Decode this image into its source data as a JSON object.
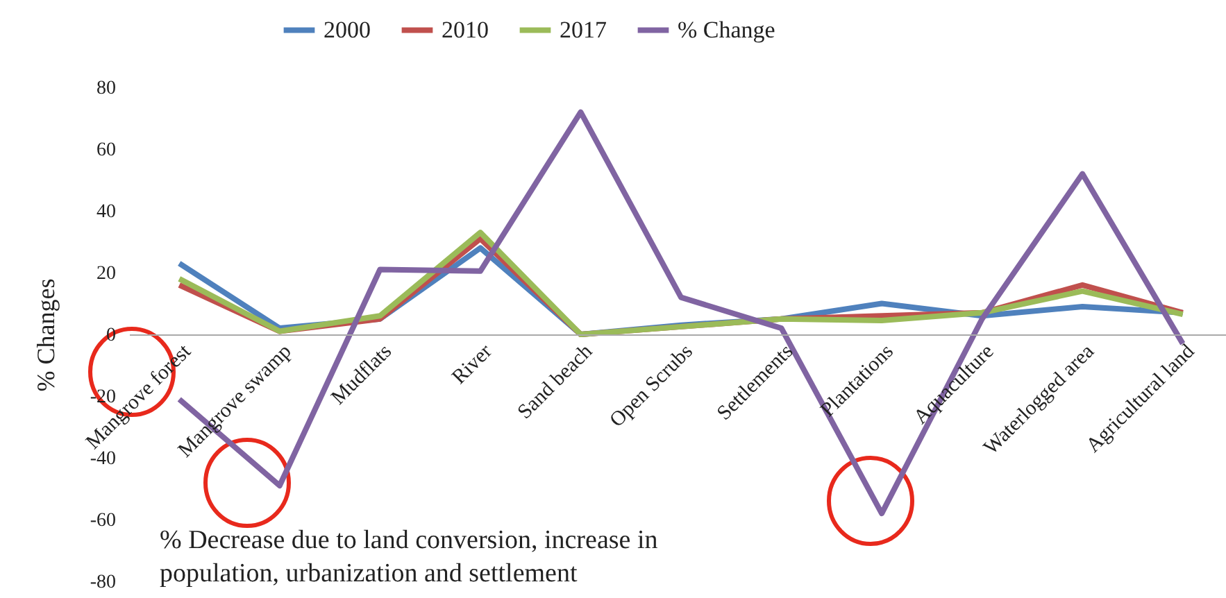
{
  "chart_data": {
    "type": "line",
    "ylabel": "% Changes",
    "categories": [
      "Mangrove forest",
      "Mangrove swamp",
      "Mudflats",
      "River",
      "Sand beach",
      "Open Scrubs",
      "Settlements",
      "Plantations",
      "Aquaculture",
      "Waterlogged area",
      "Agricultural land"
    ],
    "series": [
      {
        "name": "2000",
        "color": "#4f81bd",
        "values": [
          23,
          2,
          5,
          28,
          0,
          3,
          5,
          10,
          6,
          9,
          7
        ]
      },
      {
        "name": "2010",
        "color": "#c0504d",
        "values": [
          16,
          1,
          5,
          31,
          0,
          2.5,
          5,
          6,
          7,
          16,
          7
        ]
      },
      {
        "name": "2017",
        "color": "#9bbb59",
        "values": [
          18,
          1,
          6,
          33,
          0,
          2.5,
          5,
          4.5,
          7,
          14,
          6.5
        ]
      },
      {
        "name": "% Change",
        "color": "#8064a2",
        "values": [
          -21,
          -49,
          21,
          20.5,
          72,
          12,
          2,
          -58,
          5,
          52,
          -3
        ]
      }
    ],
    "ylim": [
      -80,
      80
    ],
    "yticks": [
      -80,
      -60,
      -40,
      -20,
      0,
      20,
      40,
      60,
      80
    ],
    "grid": false,
    "legend": "top",
    "marker": "none",
    "line_style": "solid",
    "annotations": [
      "% Decrease due to land conversion, increase in population, urbanization and settlement"
    ]
  }
}
